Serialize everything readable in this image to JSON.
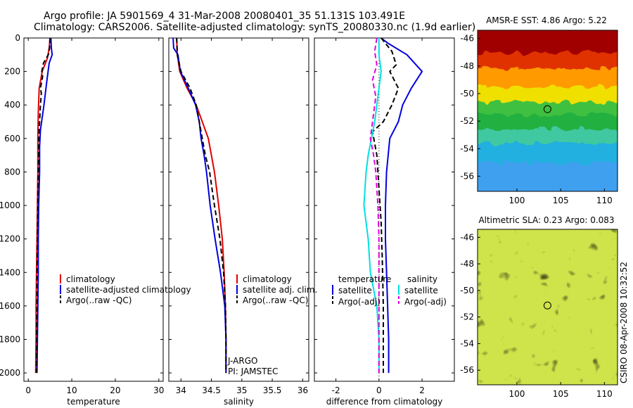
{
  "title_line1": "Argo profile: JA 5901569_4 31-Mar-2008 20080401_35 51.131S 103.491E",
  "title_line2": "Climatology: CARS2006. Satellite-adjusted climatology: synTS_20080330.nc (1.9d earlier)",
  "side_label": "CSIRO 08-Apr-2008 10:32:52",
  "chart_data": [
    {
      "id": "temperature",
      "type": "line",
      "xlabel": "temperature",
      "ylabel": "",
      "xlim": [
        -1,
        31
      ],
      "ylim": [
        2050,
        0
      ],
      "xticks": [
        0,
        10,
        20,
        30
      ],
      "yticks": [
        0,
        200,
        400,
        600,
        800,
        1000,
        1200,
        1400,
        1600,
        1800,
        2000
      ],
      "legend": [
        {
          "label": "climatology",
          "color": "#e00000"
        },
        {
          "label": "satellite-adjusted climatology",
          "color": "#0000e0"
        },
        {
          "label": "Argo(..raw -QC)",
          "color": "#000000"
        }
      ],
      "series": [
        {
          "name": "climatology",
          "color": "#e00000",
          "dash": false,
          "points": [
            [
              5.0,
              0
            ],
            [
              4.8,
              60
            ],
            [
              4.4,
              120
            ],
            [
              3.2,
              200
            ],
            [
              2.5,
              300
            ],
            [
              2.3,
              450
            ],
            [
              2.2,
              600
            ],
            [
              2.2,
              800
            ],
            [
              2.1,
              1000
            ],
            [
              2.0,
              1200
            ],
            [
              1.9,
              1400
            ],
            [
              1.8,
              1600
            ],
            [
              1.8,
              1800
            ],
            [
              1.7,
              2000
            ]
          ]
        },
        {
          "name": "satellite-adjusted climatology",
          "color": "#0000e0",
          "dash": false,
          "points": [
            [
              5.2,
              0
            ],
            [
              5.3,
              60
            ],
            [
              5.5,
              100
            ],
            [
              4.8,
              150
            ],
            [
              4.3,
              250
            ],
            [
              3.6,
              400
            ],
            [
              2.8,
              550
            ],
            [
              2.6,
              650
            ],
            [
              2.6,
              800
            ],
            [
              2.4,
              1000
            ],
            [
              2.3,
              1200
            ],
            [
              2.3,
              1400
            ],
            [
              2.2,
              1600
            ],
            [
              2.1,
              1800
            ],
            [
              2.0,
              2000
            ]
          ]
        },
        {
          "name": "Argo(..raw -QC)",
          "color": "#000000",
          "dash": true,
          "points": [
            [
              5.0,
              0
            ],
            [
              4.9,
              60
            ],
            [
              4.6,
              100
            ],
            [
              3.5,
              150
            ],
            [
              3.1,
              200
            ],
            [
              3.3,
              230
            ],
            [
              2.8,
              300
            ],
            [
              3.0,
              330
            ],
            [
              2.8,
              400
            ],
            [
              2.6,
              500
            ],
            [
              2.4,
              600
            ],
            [
              2.4,
              700
            ],
            [
              2.3,
              800
            ],
            [
              2.2,
              1000
            ],
            [
              2.1,
              1200
            ],
            [
              2.0,
              1400
            ],
            [
              2.0,
              1600
            ],
            [
              1.9,
              1800
            ],
            [
              1.9,
              2000
            ]
          ]
        }
      ]
    },
    {
      "id": "salinity",
      "type": "line",
      "xlabel": "salinity",
      "ylabel": "",
      "xlim": [
        33.8,
        36.1
      ],
      "ylim": [
        2050,
        0
      ],
      "xticks": [
        34,
        34.5,
        35,
        35.5,
        36
      ],
      "legend": [
        {
          "label": "climatology",
          "color": "#e00000"
        },
        {
          "label": "satellite adj. clim.",
          "color": "#0000e0"
        },
        {
          "label": "Argo(..raw -QC)",
          "color": "#000000"
        }
      ],
      "annotations": [
        "J-ARGO",
        "PI: JAMSTEC"
      ],
      "series": [
        {
          "name": "climatology",
          "color": "#e00000",
          "dash": false,
          "points": [
            [
              33.93,
              0
            ],
            [
              33.94,
              100
            ],
            [
              33.98,
              200
            ],
            [
              34.1,
              300
            ],
            [
              34.25,
              400
            ],
            [
              34.35,
              500
            ],
            [
              34.45,
              600
            ],
            [
              34.55,
              800
            ],
            [
              34.62,
              1000
            ],
            [
              34.68,
              1200
            ],
            [
              34.71,
              1400
            ],
            [
              34.73,
              1600
            ],
            [
              34.74,
              1800
            ],
            [
              34.74,
              2000
            ]
          ]
        },
        {
          "name": "satellite adj. clim.",
          "color": "#0000e0",
          "dash": false,
          "points": [
            [
              33.87,
              0
            ],
            [
              33.88,
              60
            ],
            [
              33.95,
              100
            ],
            [
              33.99,
              200
            ],
            [
              34.12,
              300
            ],
            [
              34.24,
              400
            ],
            [
              34.3,
              500
            ],
            [
              34.33,
              600
            ],
            [
              34.38,
              700
            ],
            [
              34.42,
              800
            ],
            [
              34.48,
              1000
            ],
            [
              34.56,
              1200
            ],
            [
              34.65,
              1400
            ],
            [
              34.72,
              1600
            ],
            [
              34.74,
              1800
            ],
            [
              34.74,
              2000
            ]
          ]
        },
        {
          "name": "Argo(..raw -QC)",
          "color": "#000000",
          "dash": true,
          "points": [
            [
              33.93,
              0
            ],
            [
              33.94,
              100
            ],
            [
              34.0,
              200
            ],
            [
              34.15,
              300
            ],
            [
              34.25,
              400
            ],
            [
              34.3,
              500
            ],
            [
              34.35,
              600
            ],
            [
              34.4,
              700
            ],
            [
              34.47,
              800
            ],
            [
              34.55,
              1000
            ],
            [
              34.64,
              1200
            ],
            [
              34.7,
              1400
            ],
            [
              34.73,
              1600
            ],
            [
              34.74,
              1800
            ],
            [
              34.74,
              2000
            ]
          ]
        }
      ]
    },
    {
      "id": "difference",
      "type": "line",
      "xlabel": "difference from climatology",
      "ylabel": "",
      "xlim": [
        -3,
        3.5
      ],
      "ylim": [
        2050,
        0
      ],
      "xticks": [
        -2,
        0,
        2
      ],
      "legend_left_title": "temperature",
      "legend_right_title": "salinity",
      "legend": [
        {
          "label": "satellite",
          "color": "#0000e0",
          "dash": false
        },
        {
          "label": "Argo(-adj)",
          "color": "#000000",
          "dash": true
        },
        {
          "label": "satellite",
          "color": "#00e0e0",
          "dash": false
        },
        {
          "label": "Argo(-adj)",
          "color": "#e000e0",
          "dash": true
        }
      ],
      "series": [
        {
          "name": "temperature satellite",
          "color": "#0000e0",
          "dash": false,
          "points": [
            [
              0.1,
              0
            ],
            [
              0.4,
              30
            ],
            [
              1.3,
              100
            ],
            [
              2.0,
              200
            ],
            [
              1.5,
              300
            ],
            [
              1.1,
              400
            ],
            [
              0.9,
              500
            ],
            [
              0.5,
              600
            ],
            [
              0.35,
              800
            ],
            [
              0.3,
              1000
            ],
            [
              0.3,
              1200
            ],
            [
              0.35,
              1400
            ],
            [
              0.4,
              1600
            ],
            [
              0.45,
              1800
            ],
            [
              0.45,
              2000
            ]
          ]
        },
        {
          "name": "temperature Argo(-adj)",
          "color": "#000000",
          "dash": true,
          "points": [
            [
              0.1,
              0
            ],
            [
              0.6,
              80
            ],
            [
              0.8,
              160
            ],
            [
              0.5,
              200
            ],
            [
              0.9,
              300
            ],
            [
              0.6,
              400
            ],
            [
              0.2,
              500
            ],
            [
              -0.3,
              560
            ],
            [
              -0.1,
              700
            ],
            [
              0.0,
              900
            ],
            [
              0.1,
              1100
            ],
            [
              0.15,
              1300
            ],
            [
              0.2,
              1600
            ],
            [
              0.2,
              1800
            ],
            [
              0.2,
              2000
            ]
          ]
        },
        {
          "name": "salinity satellite",
          "color": "#00e0e0",
          "dash": false,
          "points": [
            [
              0.0,
              0
            ],
            [
              0.0,
              100
            ],
            [
              0.1,
              200
            ],
            [
              0.0,
              300
            ],
            [
              -0.1,
              400
            ],
            [
              -0.2,
              500
            ],
            [
              -0.35,
              600
            ],
            [
              -0.5,
              700
            ],
            [
              -0.6,
              800
            ],
            [
              -0.7,
              1000
            ],
            [
              -0.5,
              1200
            ],
            [
              -0.4,
              1400
            ],
            [
              -0.1,
              1600
            ],
            [
              0.0,
              1800
            ],
            [
              0.0,
              2000
            ]
          ]
        },
        {
          "name": "salinity Argo(-adj)",
          "color": "#e000e0",
          "dash": true,
          "points": [
            [
              -0.1,
              0
            ],
            [
              -0.2,
              80
            ],
            [
              -0.1,
              160
            ],
            [
              -0.3,
              250
            ],
            [
              -0.15,
              350
            ],
            [
              -0.3,
              500
            ],
            [
              -0.4,
              600
            ],
            [
              -0.25,
              700
            ],
            [
              -0.15,
              800
            ],
            [
              -0.05,
              1000
            ],
            [
              0.0,
              1200
            ],
            [
              0.0,
              1400
            ],
            [
              0.0,
              1600
            ],
            [
              0.0,
              1800
            ],
            [
              0.0,
              2000
            ]
          ]
        }
      ]
    },
    {
      "id": "sst_map",
      "type": "heatmap",
      "title": "AMSR-E SST: 4.86 Argo: 5.22",
      "xlim": [
        95.5,
        111.5
      ],
      "ylim": [
        -57.1,
        -45.4
      ],
      "xticks": [
        100,
        105,
        110
      ],
      "yticks": [
        -46,
        -48,
        -50,
        -52,
        -54,
        -56
      ],
      "marker": [
        103.491,
        -51.131
      ],
      "color_bands": [
        {
          "lat": -45.4,
          "color": "#a00000"
        },
        {
          "lat": -47.0,
          "color": "#e03000"
        },
        {
          "lat": -48.2,
          "color": "#ff9a00"
        },
        {
          "lat": -49.5,
          "color": "#f0e000"
        },
        {
          "lat": -50.6,
          "color": "#40c040"
        },
        {
          "lat": -51.5,
          "color": "#20b040"
        },
        {
          "lat": -52.6,
          "color": "#40c8a0"
        },
        {
          "lat": -53.6,
          "color": "#20b0e0"
        },
        {
          "lat": -55.0,
          "color": "#40a0f0"
        },
        {
          "lat": -57.1,
          "color": "#3090f0"
        }
      ]
    },
    {
      "id": "sla_map",
      "type": "heatmap",
      "title": "Altimetric SLA: 0.23 Argo: 0.083",
      "xlim": [
        95.5,
        111.5
      ],
      "ylim": [
        -57.1,
        -45.4
      ],
      "xticks": [
        100,
        105,
        110
      ],
      "yticks": [
        -46,
        -48,
        -50,
        -52,
        -54,
        -56
      ],
      "marker": [
        103.491,
        -51.131
      ]
    }
  ]
}
